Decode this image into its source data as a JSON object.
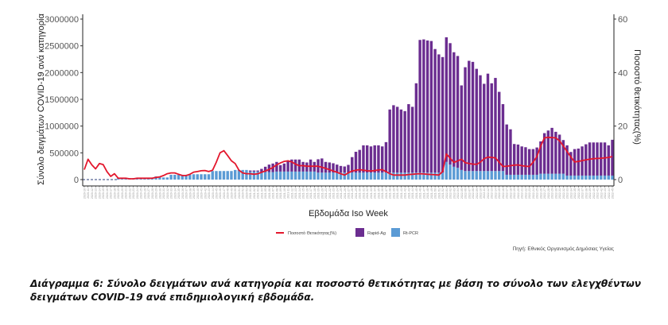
{
  "chart_data": {
    "type": "bar+line",
    "xlabel": "Εβδομάδα Iso Week",
    "ylabel": "Σύνολο δειγμάτων COVID-19 ανά κατηγορία",
    "y2label": "Ποσοστό θετικότητας(%)",
    "ylim": [
      0,
      3000000
    ],
    "y2lim": [
      0,
      60
    ],
    "yticks": [
      "0",
      "500000",
      "1000000",
      "1500000",
      "2000000",
      "2500000",
      "3000000"
    ],
    "y2ticks": [
      "0",
      "20",
      "40",
      "60"
    ],
    "value_multiplier": 1000,
    "legend": {
      "position": "bottom",
      "items": [
        "Ποσοστό Θετικότητας(%)",
        "Rapid-Ag",
        "Rt-PCR"
      ]
    },
    "source": "Πηγή: Εθνικός Οργανισμός Δημόσιας Υγείας",
    "weeks": [
      "2020-10",
      "2020-11",
      "2020-12",
      "2020-13",
      "2020-14",
      "2020-15",
      "2020-16",
      "2020-17",
      "2020-18",
      "2020-19",
      "2020-20",
      "2020-21",
      "2020-22",
      "2020-23",
      "2020-24",
      "2020-25",
      "2020-26",
      "2020-27",
      "2020-28",
      "2020-29",
      "2020-30",
      "2020-31",
      "2020-32",
      "2020-33",
      "2020-34",
      "2020-35",
      "2020-36",
      "2020-37",
      "2020-38",
      "2020-39",
      "2020-40",
      "2020-41",
      "2020-42",
      "2020-43",
      "2020-44",
      "2020-45",
      "2020-46",
      "2020-47",
      "2020-48",
      "2020-49",
      "2020-50",
      "2020-51",
      "2020-52",
      "2020-53",
      "2021-01",
      "2021-02",
      "2021-03",
      "2021-04",
      "2021-05",
      "2021-06",
      "2021-07",
      "2021-08",
      "2021-09",
      "2021-10",
      "2021-11",
      "2021-12",
      "2021-13",
      "2021-14",
      "2021-15",
      "2021-16",
      "2021-17",
      "2021-18",
      "2021-19",
      "2021-20",
      "2021-21",
      "2021-22",
      "2021-23",
      "2021-24",
      "2021-25",
      "2021-26",
      "2021-27",
      "2021-28",
      "2021-29",
      "2021-30",
      "2021-31",
      "2021-32",
      "2021-33",
      "2021-34",
      "2021-35",
      "2021-36",
      "2021-37",
      "2021-38",
      "2021-39",
      "2021-40",
      "2021-41",
      "2021-42",
      "2021-43",
      "2021-44",
      "2021-45",
      "2021-46",
      "2021-47",
      "2021-48",
      "2021-49",
      "2021-50",
      "2021-51",
      "2021-52",
      "2022-01",
      "2022-02",
      "2022-03",
      "2022-04",
      "2022-05",
      "2022-06",
      "2022-07",
      "2022-08",
      "2022-09",
      "2022-10",
      "2022-11",
      "2022-12",
      "2022-13",
      "2022-14",
      "2022-15",
      "2022-16",
      "2022-17",
      "2022-18",
      "2022-19",
      "2022-20",
      "2022-21",
      "2022-22",
      "2022-23",
      "2022-24",
      "2022-25",
      "2022-26",
      "2022-27",
      "2022-28",
      "2022-29",
      "2022-30",
      "2022-31",
      "2022-32",
      "2022-33",
      "2022-34",
      "2022-35",
      "2022-36",
      "2022-37",
      "2022-38",
      "2022-39",
      "2022-40",
      "2022-41",
      "2022-42",
      "2022-43",
      "2022-44",
      "2022-45"
    ],
    "series": [
      {
        "name": "Rapid-Ag",
        "color": "#6b2d90",
        "values": [
          0,
          0,
          0,
          0,
          0,
          0,
          0,
          0,
          0,
          0,
          0,
          0,
          0,
          0,
          0,
          0,
          0,
          0,
          0,
          0,
          0,
          0,
          0,
          0,
          0,
          0,
          0,
          0,
          0,
          0,
          0,
          0,
          0,
          0,
          0,
          0,
          0,
          0,
          0,
          0,
          0,
          0,
          0,
          0,
          20,
          20,
          20,
          60,
          100,
          140,
          160,
          180,
          120,
          150,
          200,
          225,
          225,
          225,
          180,
          170,
          225,
          180,
          250,
          265,
          200,
          190,
          175,
          150,
          125,
          115,
          145,
          290,
          390,
          425,
          510,
          510,
          490,
          510,
          510,
          490,
          570,
          1180,
          1260,
          1230,
          1180,
          1150,
          1280,
          1230,
          1670,
          2480,
          2490,
          2470,
          2460,
          2310,
          2210,
          2160,
          2330,
          2270,
          2140,
          2090,
          1580,
          1940,
          2060,
          2040,
          1910,
          1790,
          1630,
          1820,
          1640,
          1740,
          1480,
          1250,
          940,
          850,
          575,
          565,
          530,
          515,
          480,
          480,
          510,
          604,
          758,
          807,
          857,
          783,
          730,
          629,
          565,
          441,
          495,
          505,
          545,
          585,
          619,
          619,
          619,
          619,
          619,
          565,
          669
        ]
      },
      {
        "name": "Rt-PCR",
        "color": "#5b9bd5",
        "values": [
          0,
          0,
          0,
          0,
          0,
          0,
          0,
          0,
          0,
          25,
          25,
          25,
          25,
          25,
          25,
          25,
          25,
          25,
          25,
          60,
          60,
          40,
          40,
          90,
          90,
          90,
          90,
          90,
          90,
          100,
          100,
          100,
          100,
          100,
          160,
          160,
          160,
          160,
          160,
          160,
          180,
          180,
          180,
          180,
          150,
          150,
          150,
          140,
          140,
          140,
          140,
          150,
          150,
          150,
          150,
          150,
          150,
          150,
          150,
          150,
          150,
          150,
          130,
          130,
          130,
          130,
          130,
          130,
          130,
          130,
          130,
          130,
          130,
          130,
          130,
          130,
          130,
          130,
          130,
          130,
          130,
          130,
          130,
          130,
          130,
          130,
          130,
          130,
          130,
          130,
          130,
          130,
          130,
          130,
          130,
          130,
          330,
          280,
          240,
          220,
          180,
          160,
          160,
          160,
          160,
          160,
          160,
          160,
          160,
          160,
          160,
          160,
          90,
          90,
          90,
          90,
          90,
          90,
          90,
          90,
          90,
          110,
          110,
          110,
          110,
          110,
          110,
          110,
          75,
          75,
          75,
          75,
          75,
          75,
          75,
          75,
          75,
          75,
          75,
          75,
          75
        ]
      },
      {
        "name": "Ποσοστό Θετικότητας(%)",
        "color": "#e3172d",
        "axis": "right",
        "values": [
          3.7,
          7.6,
          5.5,
          4.0,
          6.0,
          5.6,
          3.0,
          1.2,
          2.2,
          0.5,
          0.5,
          0.5,
          0.3,
          0.3,
          0.5,
          0.5,
          0.5,
          0.5,
          0.5,
          0.8,
          1.0,
          1.5,
          2.2,
          2.5,
          2.5,
          2.0,
          1.5,
          1.5,
          2.0,
          2.8,
          3.0,
          3.3,
          3.4,
          3.0,
          3.5,
          6.5,
          10.0,
          10.8,
          9.0,
          7.0,
          6.0,
          3.5,
          2.5,
          2.2,
          2.2,
          2.0,
          2.2,
          2.7,
          3.2,
          3.8,
          4.5,
          5.5,
          6.2,
          6.8,
          7.0,
          6.6,
          5.8,
          5.2,
          5.2,
          5.0,
          5.0,
          5.0,
          5.0,
          4.6,
          4.2,
          3.7,
          3.2,
          2.7,
          2.2,
          1.7,
          2.5,
          3.2,
          3.5,
          3.7,
          3.5,
          3.3,
          3.2,
          3.4,
          3.6,
          3.7,
          3.0,
          2.2,
          1.7,
          1.7,
          1.7,
          1.7,
          1.9,
          2.0,
          2.1,
          2.2,
          2.1,
          2.0,
          1.9,
          1.8,
          1.7,
          3.0,
          9.6,
          8.0,
          6.4,
          7.0,
          7.6,
          6.3,
          6.0,
          5.8,
          5.7,
          6.5,
          7.8,
          8.4,
          8.3,
          8.1,
          6.5,
          4.9,
          5.0,
          5.2,
          5.4,
          5.5,
          5.2,
          5.0,
          4.9,
          6.5,
          8.6,
          12.5,
          15.6,
          15.8,
          15.7,
          15.6,
          14.5,
          12.6,
          10.5,
          8.5,
          6.6,
          6.8,
          7.1,
          7.4,
          7.6,
          7.8,
          7.9,
          8.0,
          8.1,
          8.3,
          8.6
        ]
      }
    ]
  },
  "caption": "Διάγραμμα 6:  Σύνολο δειγμάτων ανά κατηγορία και ποσοστό θετικότητας με βάση το σύνολο των ελεγχθέντων δειγμάτων COVID-19 ανά επιδημιολογική εβδομάδα."
}
